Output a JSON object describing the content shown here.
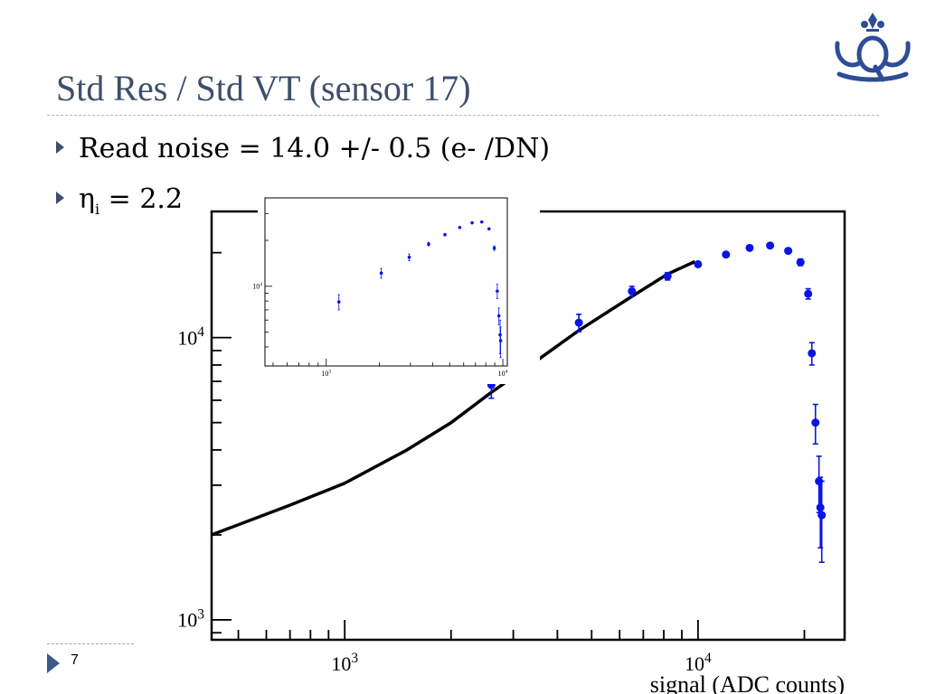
{
  "slide": {
    "title": "Std Res / Std VT (sensor 17)",
    "bullets": [
      {
        "text": "Read noise = 14.0 +/- 0.5 (e- /DN)"
      },
      {
        "symbol": "η",
        "sub": "i",
        "rest": " = 2.2"
      }
    ],
    "page_number": "7"
  },
  "chart_data": [
    {
      "type": "scatter",
      "title": "",
      "xlabel": "signal (ADC counts)",
      "ylabel": "",
      "xscale": "log",
      "yscale": "log",
      "xlim": [
        420,
        26000
      ],
      "ylim": [
        850,
        28000
      ],
      "x_tick_labels": [
        "10^3",
        "10^4"
      ],
      "y_tick_labels": [
        "10^3",
        "10^4"
      ],
      "color": "#0a14e6",
      "series": [
        {
          "points": [
            {
              "x": 2600,
              "y": 6800,
              "err": 700
            },
            {
              "x": 4600,
              "y": 11300,
              "err": 800
            },
            {
              "x": 6500,
              "y": 14600,
              "err": 600
            },
            {
              "x": 8200,
              "y": 16500,
              "err": 500
            },
            {
              "x": 10000,
              "y": 18200,
              "err": 300
            },
            {
              "x": 12000,
              "y": 19700,
              "err": 300
            },
            {
              "x": 14000,
              "y": 20800,
              "err": 300
            },
            {
              "x": 16000,
              "y": 21200,
              "err": 300
            },
            {
              "x": 18000,
              "y": 20300,
              "err": 400
            },
            {
              "x": 19500,
              "y": 18500,
              "err": 500
            },
            {
              "x": 20500,
              "y": 14300,
              "err": 600
            },
            {
              "x": 21000,
              "y": 8800,
              "err": 800
            },
            {
              "x": 21500,
              "y": 5000,
              "err": 800
            },
            {
              "x": 22000,
              "y": 3100,
              "err": 700
            },
            {
              "x": 22200,
              "y": 2500,
              "err": 700
            },
            {
              "x": 22400,
              "y": 2350,
              "err": 750
            }
          ]
        }
      ],
      "fit_curve": [
        {
          "x": 420,
          "y": 2000
        },
        {
          "x": 700,
          "y": 2550
        },
        {
          "x": 1000,
          "y": 3050
        },
        {
          "x": 1500,
          "y": 4000
        },
        {
          "x": 2000,
          "y": 5000
        },
        {
          "x": 2600,
          "y": 6400
        },
        {
          "x": 3500,
          "y": 8300
        },
        {
          "x": 4600,
          "y": 10600
        },
        {
          "x": 6500,
          "y": 14000
        },
        {
          "x": 8200,
          "y": 16800
        },
        {
          "x": 9800,
          "y": 18600
        }
      ]
    },
    {
      "type": "scatter",
      "title": "",
      "xscale": "log",
      "yscale": "log",
      "xlim": [
        450,
        10600
      ],
      "ylim": [
        3000,
        38000
      ],
      "x_tick_labels": [
        "10^3",
        "10^4"
      ],
      "y_tick_labels": [
        "10^4"
      ],
      "color": "#0a14e6",
      "series": [
        {
          "points": [
            {
              "x": 1180,
              "y": 7900,
              "err": 900
            },
            {
              "x": 2050,
              "y": 12200,
              "err": 900
            },
            {
              "x": 2950,
              "y": 15500,
              "err": 800
            },
            {
              "x": 3800,
              "y": 18900,
              "err": 500
            },
            {
              "x": 4700,
              "y": 21800,
              "err": 400
            },
            {
              "x": 5700,
              "y": 24300,
              "err": 300
            },
            {
              "x": 6700,
              "y": 26100,
              "err": 300
            },
            {
              "x": 7600,
              "y": 26400,
              "err": 300
            },
            {
              "x": 8350,
              "y": 23800,
              "err": 300
            },
            {
              "x": 8950,
              "y": 17800,
              "err": 600
            },
            {
              "x": 9300,
              "y": 9300,
              "err": 1000
            },
            {
              "x": 9500,
              "y": 6400,
              "err": 800
            },
            {
              "x": 9650,
              "y": 4800,
              "err": 1200
            },
            {
              "x": 9720,
              "y": 4400,
              "err": 1000
            }
          ]
        }
      ]
    }
  ]
}
